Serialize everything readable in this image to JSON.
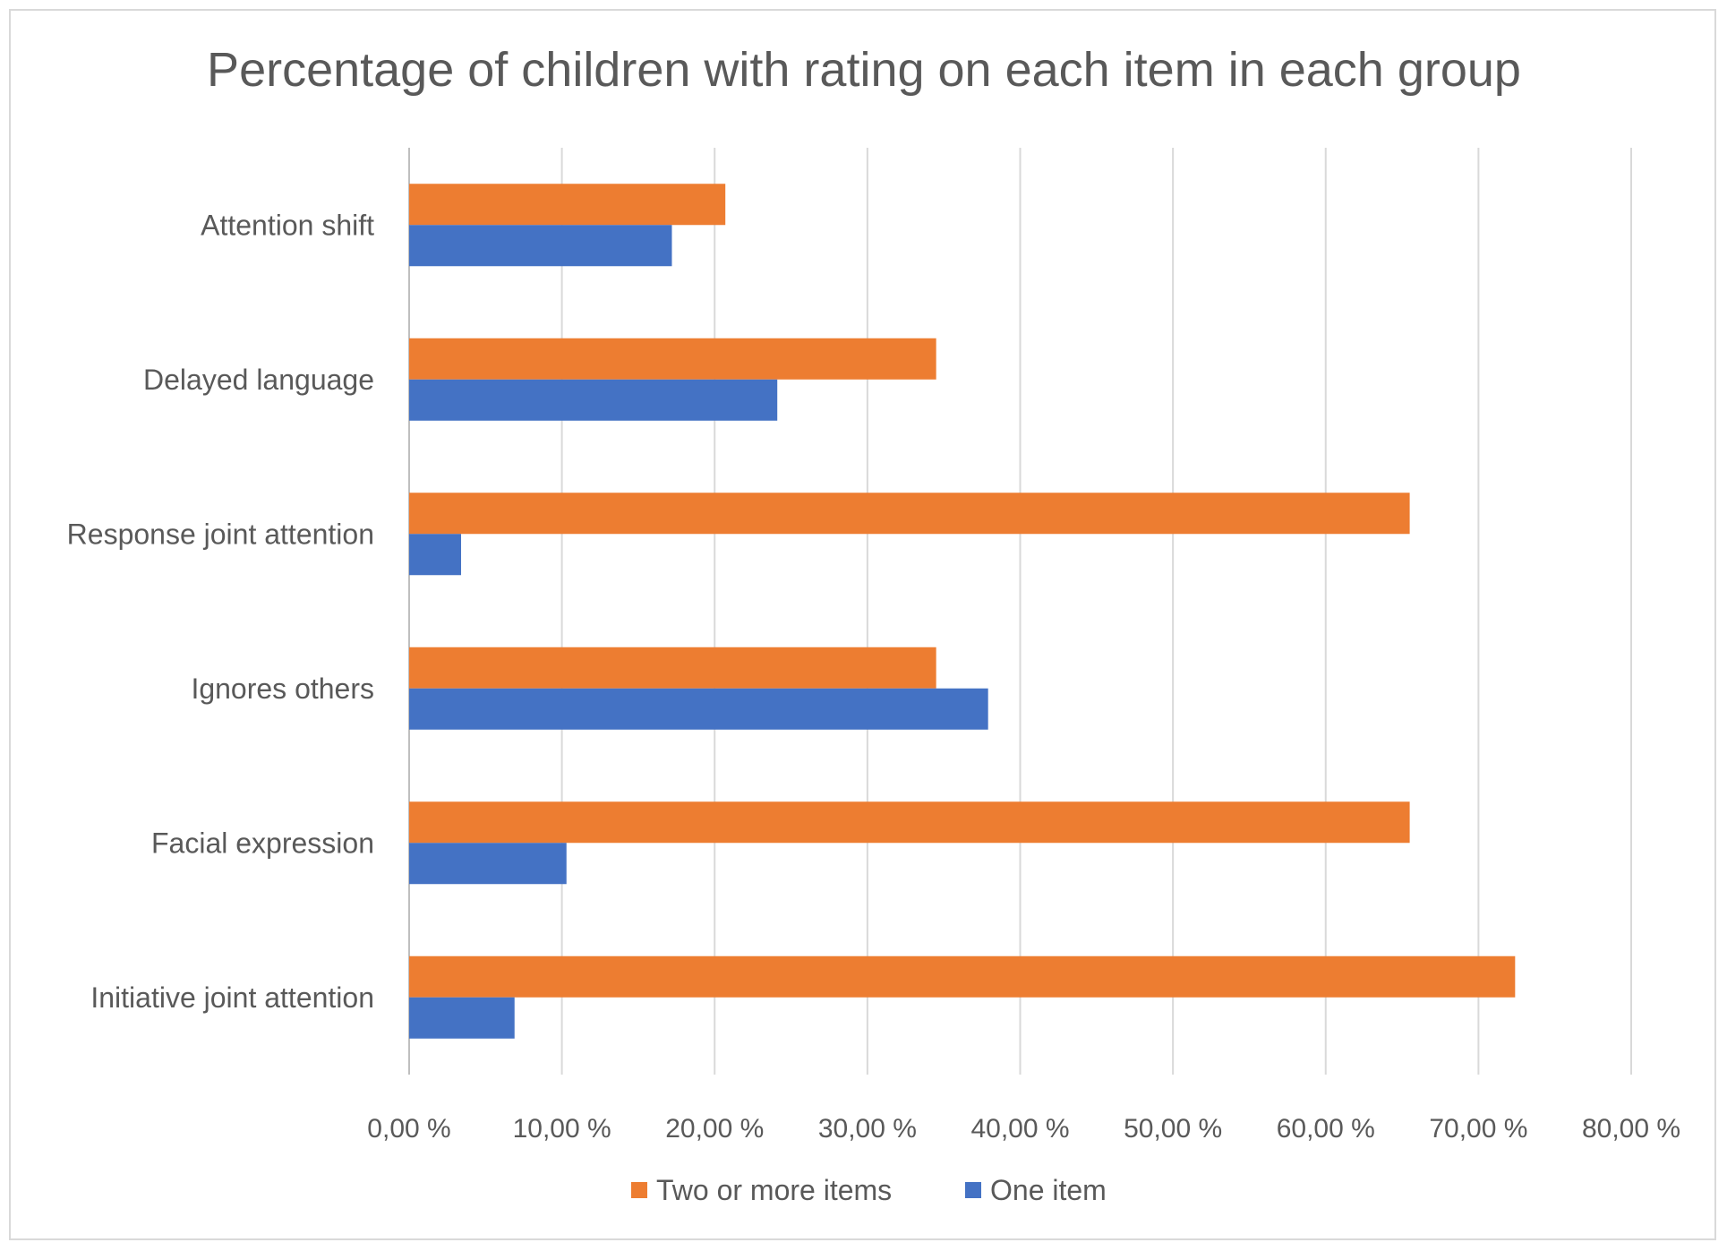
{
  "chart_data": {
    "type": "bar",
    "orientation": "horizontal",
    "title": "Percentage of children  with rating on each item in each group",
    "categories": [
      "Attention shift",
      "Delayed language",
      "Response joint attention",
      "Ignores others",
      "Facial expression",
      "Initiative joint attention"
    ],
    "series": [
      {
        "name": "Two or more items",
        "color": "#ED7D31",
        "values": [
          20.7,
          34.5,
          65.5,
          34.5,
          65.5,
          72.4
        ]
      },
      {
        "name": "One item",
        "color": "#4472C4",
        "values": [
          17.2,
          24.1,
          3.4,
          37.9,
          10.3,
          6.9
        ]
      }
    ],
    "x_ticks": [
      "0,00 %",
      "10,00 %",
      "20,00 %",
      "30,00 %",
      "40,00 %",
      "50,00 %",
      "60,00 %",
      "70,00 %",
      "80,00 %"
    ],
    "xlim": [
      0,
      80
    ],
    "xlabel": "",
    "ylabel": "",
    "grid": "vertical",
    "legend_position": "bottom"
  }
}
